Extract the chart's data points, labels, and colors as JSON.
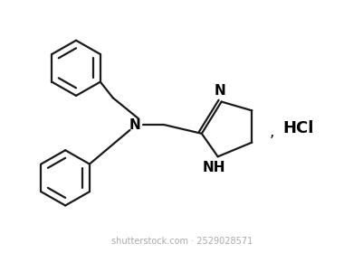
{
  "background_color": "#ffffff",
  "line_color": "#1a1a1a",
  "line_width": 1.6,
  "text_color": "#000000",
  "font_size_N": 11,
  "font_size_NH": 11,
  "font_size_hcl": 13,
  "watermark": "shutterstock.com · 2529028571",
  "watermark_fontsize": 7,
  "fig_width": 4.02,
  "fig_height": 2.8,
  "dpi": 100,
  "xlim": [
    0,
    10
  ],
  "ylim": [
    0,
    7
  ]
}
